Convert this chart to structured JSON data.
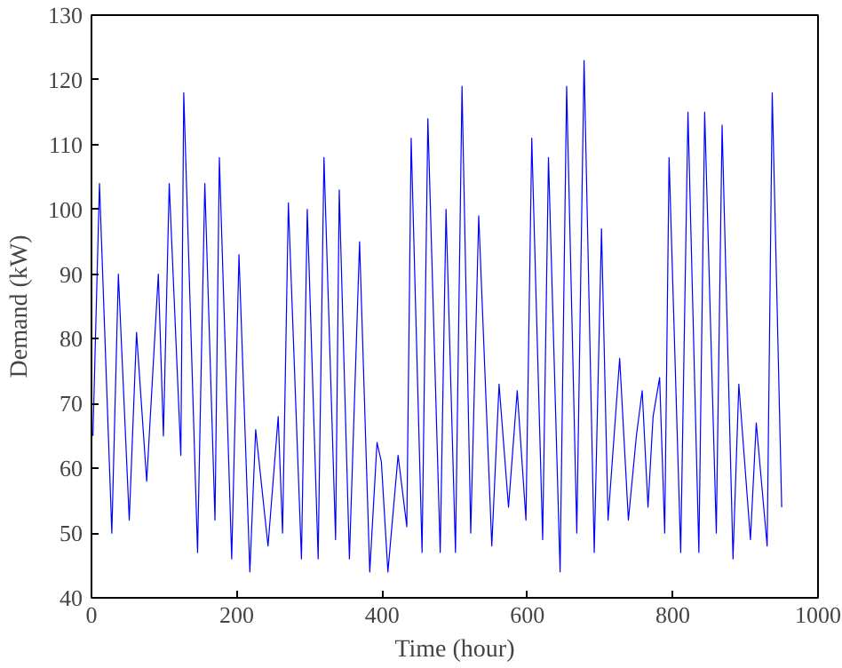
{
  "chart_data": {
    "type": "line",
    "xlabel": "Time (hour)",
    "ylabel": "Demand (kW)",
    "xlim": [
      0,
      1000
    ],
    "ylim": [
      40,
      130
    ],
    "xticks": [
      0,
      200,
      400,
      600,
      800,
      1000
    ],
    "yticks": [
      40,
      50,
      60,
      70,
      80,
      90,
      100,
      110,
      120,
      130
    ],
    "grid": false,
    "marker": "none",
    "line_style": "solid",
    "series": [
      {
        "color": "#0000ff",
        "x": [
          2,
          11,
          28,
          37,
          52,
          62,
          76,
          92,
          99,
          107,
          123,
          127,
          146,
          156,
          170,
          176,
          193,
          203,
          218,
          226,
          243,
          257,
          263,
          271,
          289,
          297,
          312,
          320,
          336,
          341,
          355,
          369,
          383,
          393,
          399,
          408,
          422,
          434,
          440,
          455,
          463,
          480,
          488,
          501,
          510,
          522,
          533,
          551,
          561,
          574,
          586,
          598,
          606,
          621,
          629,
          645,
          654,
          668,
          678,
          692,
          702,
          711,
          727,
          739,
          750,
          758,
          766,
          773,
          782,
          789,
          795,
          811,
          821,
          836,
          844,
          860,
          868,
          883,
          891,
          907,
          915,
          930,
          937,
          950
        ],
        "values": [
          65,
          104,
          50,
          90,
          52,
          81,
          58,
          90,
          65,
          104,
          62,
          118,
          47,
          104,
          52,
          108,
          46,
          93,
          44,
          66,
          48,
          68,
          50,
          101,
          46,
          100,
          46,
          108,
          49,
          103,
          46,
          95,
          44,
          64,
          61,
          44,
          62,
          51,
          111,
          47,
          114,
          47,
          100,
          47,
          119,
          50,
          99,
          48,
          73,
          54,
          72,
          52,
          111,
          49,
          108,
          44,
          119,
          50,
          123,
          47,
          97,
          52,
          77,
          52,
          65,
          72,
          54,
          68,
          74,
          50,
          108,
          47,
          115,
          47,
          115,
          50,
          113,
          46,
          73,
          49,
          67,
          48,
          118,
          54
        ]
      }
    ]
  }
}
